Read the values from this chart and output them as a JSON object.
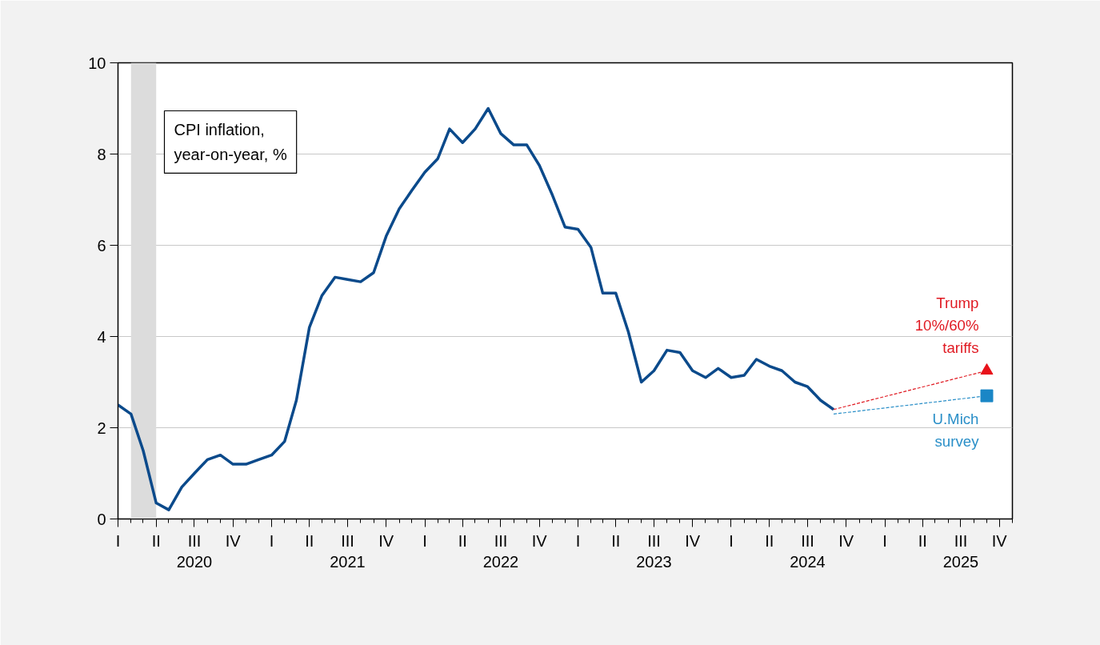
{
  "chart_data": {
    "type": "line",
    "title": "CPI inflation,\nyear-on-year, %",
    "xlim": [
      "2020-01",
      "2025-11"
    ],
    "ylim": [
      0,
      10
    ],
    "yticks": [
      0,
      2,
      4,
      6,
      8,
      10
    ],
    "xticks": [
      {
        "value": "2020-01",
        "label": "I"
      },
      {
        "value": "2020-04",
        "label": "II"
      },
      {
        "value": "2020-07",
        "label": "III\n2020"
      },
      {
        "value": "2020-10",
        "label": "IV"
      },
      {
        "value": "2021-01",
        "label": "I"
      },
      {
        "value": "2021-04",
        "label": "II"
      },
      {
        "value": "2021-07",
        "label": "III\n2021"
      },
      {
        "value": "2021-10",
        "label": "IV"
      },
      {
        "value": "2022-01",
        "label": "I"
      },
      {
        "value": "2022-04",
        "label": "II"
      },
      {
        "value": "2022-07",
        "label": "III\n2022"
      },
      {
        "value": "2022-10",
        "label": "IV"
      },
      {
        "value": "2023-01",
        "label": "I"
      },
      {
        "value": "2023-04",
        "label": "II"
      },
      {
        "value": "2023-07",
        "label": "III\n2023"
      },
      {
        "value": "2023-10",
        "label": "IV"
      },
      {
        "value": "2024-01",
        "label": "I"
      },
      {
        "value": "2024-04",
        "label": "II"
      },
      {
        "value": "2024-07",
        "label": "III\n2024"
      },
      {
        "value": "2024-10",
        "label": "IV"
      },
      {
        "value": "2025-01",
        "label": "I"
      },
      {
        "value": "2025-04",
        "label": "II"
      },
      {
        "value": "2025-07",
        "label": "III\n2025"
      },
      {
        "value": "2025-10",
        "label": "IV"
      }
    ],
    "grid": "y",
    "bands": [
      {
        "axis": "x",
        "from": "2020-02",
        "to": "2020-04",
        "color": "#dcdcdc"
      }
    ],
    "series": [
      {
        "color": "#0b4a8b",
        "line_style": "solid",
        "marker": "none",
        "x": [
          "2020-01",
          "2020-02",
          "2020-03",
          "2020-04",
          "2020-05",
          "2020-06",
          "2020-07",
          "2020-08",
          "2020-09",
          "2020-10",
          "2020-11",
          "2020-12",
          "2021-01",
          "2021-02",
          "2021-03",
          "2021-04",
          "2021-05",
          "2021-06",
          "2021-07",
          "2021-08",
          "2021-09",
          "2021-10",
          "2021-11",
          "2021-12",
          "2022-01",
          "2022-02",
          "2022-03",
          "2022-04",
          "2022-05",
          "2022-06",
          "2022-07",
          "2022-08",
          "2022-09",
          "2022-10",
          "2022-11",
          "2022-12",
          "2023-01",
          "2023-02",
          "2023-03",
          "2023-04",
          "2023-05",
          "2023-06",
          "2023-07",
          "2023-08",
          "2023-09",
          "2023-10",
          "2023-11",
          "2023-12",
          "2024-01",
          "2024-02",
          "2024-03",
          "2024-04",
          "2024-05",
          "2024-06",
          "2024-07",
          "2024-08",
          "2024-09"
        ],
        "values": [
          2.5,
          2.3,
          1.5,
          0.35,
          0.2,
          0.7,
          1.0,
          1.3,
          1.4,
          1.2,
          1.2,
          1.3,
          1.4,
          1.7,
          2.6,
          4.2,
          4.9,
          5.3,
          5.25,
          5.2,
          5.4,
          6.2,
          6.8,
          7.2,
          7.6,
          7.9,
          8.55,
          8.25,
          8.55,
          9.0,
          8.45,
          8.2,
          8.2,
          7.75,
          7.1,
          6.4,
          6.35,
          5.95,
          4.95,
          4.95,
          4.1,
          3.0,
          3.25,
          3.7,
          3.65,
          3.25,
          3.1,
          3.3,
          3.1,
          3.15,
          3.5,
          3.35,
          3.25,
          3.0,
          2.9,
          2.6,
          2.4
        ]
      },
      {
        "type": "line",
        "name": "Trump 10%/60% tariffs",
        "color": "#e01a22",
        "line_style": "dashed",
        "marker": "none",
        "x": [
          "2024-09",
          "2025-09"
        ],
        "values": [
          2.4,
          3.25
        ]
      },
      {
        "type": "scatter",
        "color": "#e8121a",
        "marker": "triangle",
        "x": [
          "2025-09"
        ],
        "values": [
          3.25
        ]
      },
      {
        "type": "line",
        "name": "U.Mich survey",
        "color": "#2a8fc8",
        "line_style": "dashed",
        "marker": "none",
        "x": [
          "2024-09",
          "2025-09"
        ],
        "values": [
          2.3,
          2.7
        ]
      },
      {
        "type": "scatter",
        "color": "#1a86c6",
        "marker": "square",
        "x": [
          "2025-09"
        ],
        "values": [
          2.7
        ]
      }
    ]
  }
}
